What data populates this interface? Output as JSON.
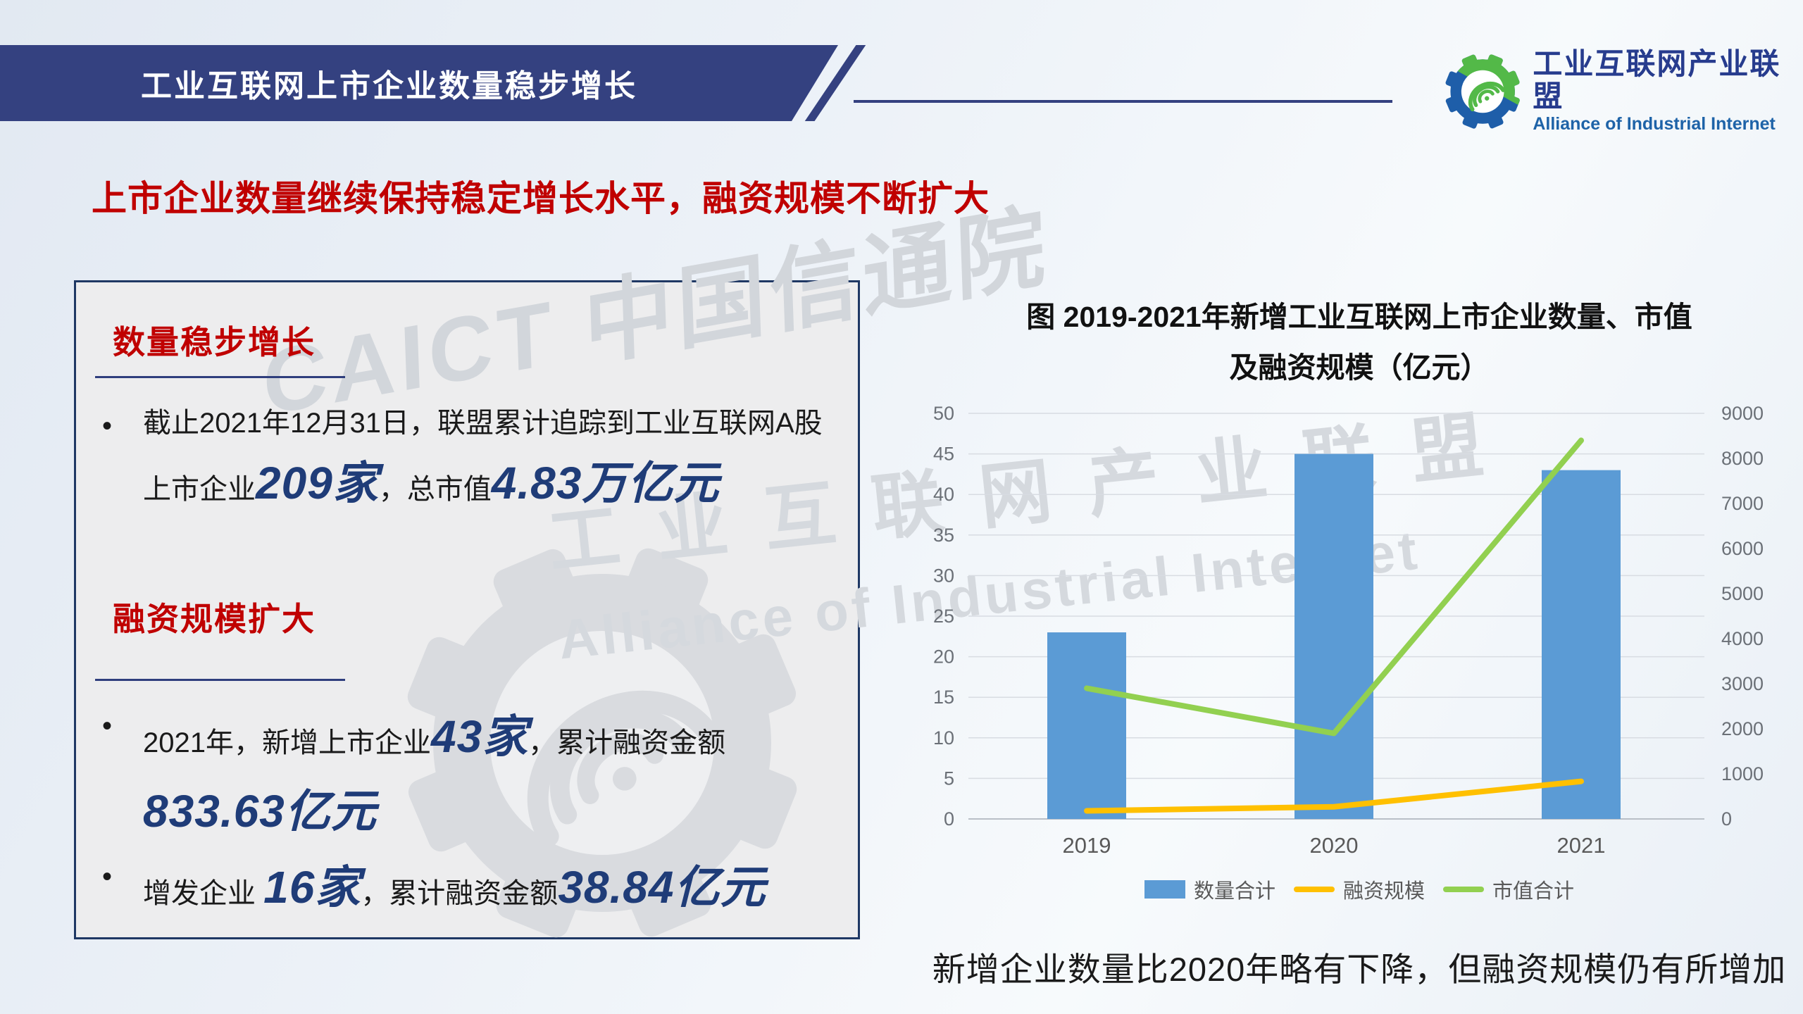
{
  "slide": {
    "colors": {
      "banner_navy": "#344180",
      "headline_red": "#c00000",
      "number_blue": "#1f3c78",
      "box_border": "#1f3864"
    },
    "header": {
      "title": "工业互联网上市企业数量稳步增长"
    },
    "logo": {
      "cn": "工业互联网产业联盟",
      "en": "Alliance of Industrial Internet"
    },
    "headline": "上市企业数量继续保持稳定增长水平，融资规模不断扩大",
    "watermarks": {
      "caict": "CAICT 中国信通院",
      "aii_cn": "工业互联网产业联盟",
      "aii_en": "Alliance of Industrial Internet"
    },
    "info_box": {
      "section1": {
        "heading": "数量稳步增长",
        "bullet_pre": "截止2021年12月31日，联盟累计追踪到工业互联网A股上市企业",
        "bullet_big1": "209家",
        "bullet_mid": "，总市值",
        "bullet_big2": "4.83万亿元"
      },
      "section2": {
        "heading": "融资规模扩大",
        "bullet1_pre": "2021年，新增上市企业",
        "bullet1_big1": "43家",
        "bullet1_mid": "，累计融资金额 ",
        "bullet1_big2": "833.63亿元",
        "bullet2_pre": "增发企业 ",
        "bullet2_big1": "16家",
        "bullet2_mid": "，累计融资金额",
        "bullet2_big2": "38.84亿元"
      }
    },
    "chart": {
      "title_line1": "图 2019-2021年新增工业互联网上市企业数量、市值",
      "title_line2": "及融资规模（亿元）",
      "caption": "新增企业数量比2020年略有下降，但融资规模仍有所增加"
    }
  },
  "chart_data": {
    "type": "combo-bar-line",
    "title": "图 2019-2021年新增工业互联网上市企业数量、市值及融资规模（亿元）",
    "categories": [
      "2019",
      "2020",
      "2021"
    ],
    "series": [
      {
        "name": "数量合计",
        "type": "bar",
        "axis": "left",
        "values": [
          23,
          45,
          43
        ],
        "color": "#5b9bd5"
      },
      {
        "name": "融资规模",
        "type": "line",
        "axis": "right",
        "values": [
          180,
          270,
          833.63
        ],
        "color": "#ffc000"
      },
      {
        "name": "市值合计",
        "type": "line",
        "axis": "right",
        "values": [
          2900,
          1900,
          8400
        ],
        "color": "#92d050"
      }
    ],
    "left_axis": {
      "min": 0,
      "max": 50,
      "step": 5,
      "ticks": [
        0,
        5,
        10,
        15,
        20,
        25,
        30,
        35,
        40,
        45,
        50
      ]
    },
    "right_axis": {
      "min": 0,
      "max": 9000,
      "step": 1000,
      "ticks": [
        0,
        1000,
        2000,
        3000,
        4000,
        5000,
        6000,
        7000,
        8000,
        9000
      ]
    },
    "grid": true,
    "legend_position": "bottom"
  }
}
